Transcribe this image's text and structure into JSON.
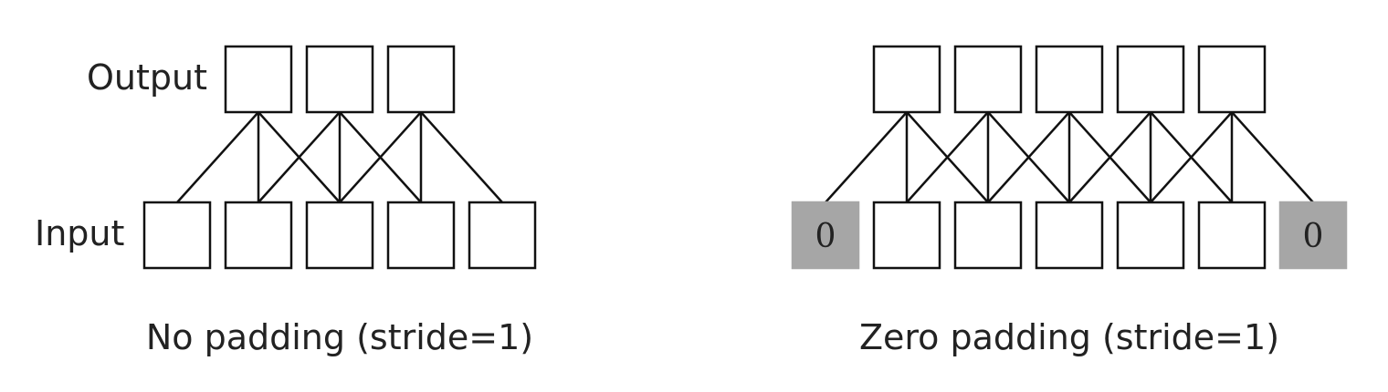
{
  "left_panel": {
    "output_label": "Output",
    "input_label": "Input",
    "caption": "No padding (stride=1)",
    "output_count": 3,
    "input_count": 5,
    "kernel_size": 3
  },
  "right_panel": {
    "caption": "Zero padding (stride=1)",
    "output_count": 5,
    "input_count": 7,
    "kernel_size": 3,
    "pad_value": "0"
  },
  "colors": {
    "line": "#111111",
    "pad_fill": "#a6a6a6",
    "background": "#ffffff"
  }
}
